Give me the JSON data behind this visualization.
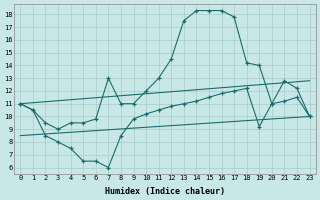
{
  "xlabel": "Humidex (Indice chaleur)",
  "bg_color": "#c8e8e8",
  "grid_color": "#aacaca",
  "line_color": "#1a6b6b",
  "xlim": [
    -0.5,
    23.5
  ],
  "ylim": [
    5.5,
    18.8
  ],
  "xticks": [
    0,
    1,
    2,
    3,
    4,
    5,
    6,
    7,
    8,
    9,
    10,
    11,
    12,
    13,
    14,
    15,
    16,
    17,
    18,
    19,
    20,
    21,
    22,
    23
  ],
  "yticks": [
    6,
    7,
    8,
    9,
    10,
    11,
    12,
    13,
    14,
    15,
    16,
    17,
    18
  ],
  "line1_x": [
    0,
    1,
    2,
    3,
    4,
    5,
    6,
    7,
    8,
    9,
    10,
    11,
    12,
    13,
    14,
    15,
    16,
    17,
    18,
    19,
    20,
    21,
    22,
    23
  ],
  "line1_y": [
    11,
    10.5,
    9.5,
    9.0,
    9.5,
    9.5,
    9.8,
    13.0,
    11.0,
    11.0,
    12.0,
    13.0,
    14.5,
    17.5,
    18.3,
    18.3,
    18.3,
    17.8,
    14.2,
    14.0,
    11.0,
    12.8,
    12.2,
    10.0
  ],
  "line2_x": [
    0,
    23
  ],
  "line2_y": [
    11.0,
    12.8
  ],
  "line3_x": [
    0,
    23
  ],
  "line3_y": [
    8.5,
    10.0
  ],
  "line4_x": [
    0,
    1,
    2,
    3,
    4,
    5,
    6,
    7,
    8,
    9,
    10,
    11,
    12,
    13,
    14,
    15,
    16,
    17,
    18,
    19,
    20,
    21,
    22,
    23
  ],
  "line4_y": [
    11.0,
    10.5,
    8.5,
    8.0,
    7.5,
    6.5,
    6.5,
    6.0,
    8.5,
    9.8,
    10.2,
    10.5,
    10.8,
    11.0,
    11.2,
    11.5,
    11.8,
    12.0,
    12.2,
    9.2,
    11.0,
    11.2,
    11.5,
    10.0
  ]
}
